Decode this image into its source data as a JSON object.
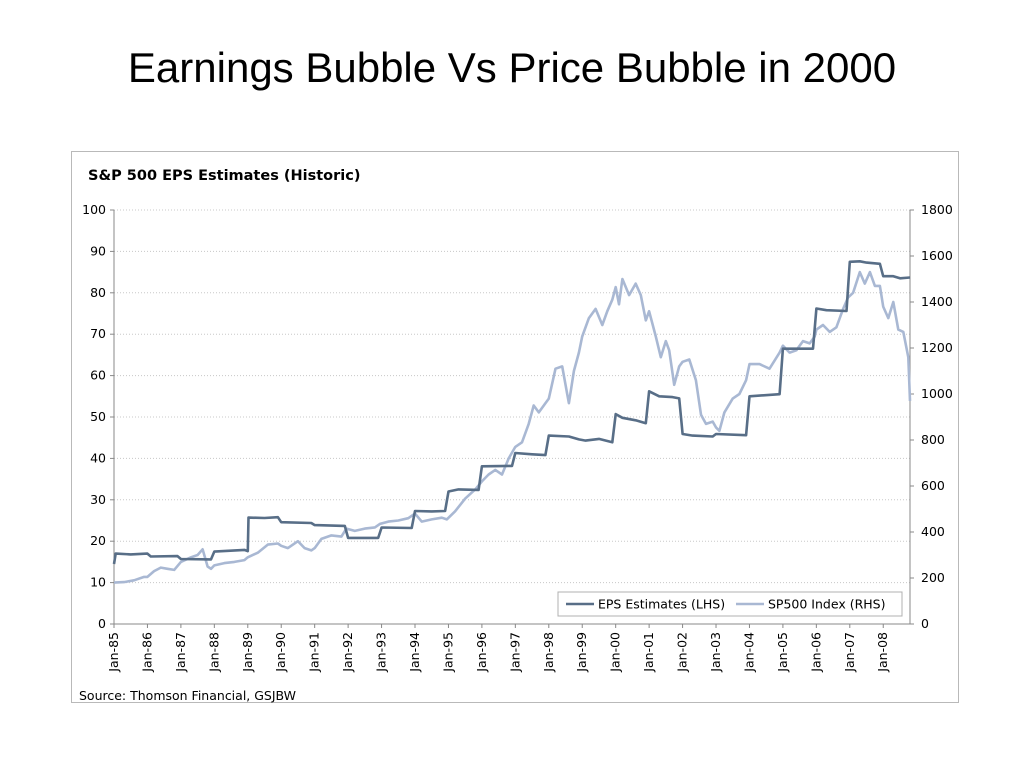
{
  "slide": {
    "title": "Earnings Bubble Vs Price Bubble in 2000"
  },
  "source": "Source: Thomson Financial, GSJBW",
  "chart_data": {
    "type": "line",
    "title": "S&P 500 EPS Estimates (Historic)",
    "grid": "horizontal dotted",
    "legend_position": "bottom-right",
    "x_ticks": [
      "Jan-85",
      "Jan-86",
      "Jan-87",
      "Jan-88",
      "Jan-89",
      "Jan-90",
      "Jan-91",
      "Jan-92",
      "Jan-93",
      "Jan-94",
      "Jan-95",
      "Jan-96",
      "Jan-97",
      "Jan-98",
      "Jan-99",
      "Jan-00",
      "Jan-01",
      "Jan-02",
      "Jan-03",
      "Jan-04",
      "Jan-05",
      "Jan-06",
      "Jan-07",
      "Jan-08"
    ],
    "x_range": [
      1985.0,
      2008.8
    ],
    "y_left": {
      "ylim": [
        0,
        100
      ],
      "ticks": [
        0,
        10,
        20,
        30,
        40,
        50,
        60,
        70,
        80,
        90,
        100
      ]
    },
    "y_right": {
      "ylim": [
        0,
        1800
      ],
      "ticks": [
        0,
        200,
        400,
        600,
        800,
        1000,
        1200,
        1400,
        1600,
        1800
      ]
    },
    "series": [
      {
        "name": "EPS Estimates (LHS)",
        "axis": "left",
        "color": "#586e87",
        "points": [
          [
            1985.0,
            14.5
          ],
          [
            1985.05,
            17.0
          ],
          [
            1985.5,
            16.8
          ],
          [
            1986.0,
            17.0
          ],
          [
            1986.1,
            16.3
          ],
          [
            1986.9,
            16.4
          ],
          [
            1987.0,
            15.7
          ],
          [
            1987.9,
            15.6
          ],
          [
            1988.0,
            17.5
          ],
          [
            1988.9,
            17.9
          ],
          [
            1989.0,
            17.6
          ],
          [
            1989.02,
            25.7
          ],
          [
            1989.5,
            25.6
          ],
          [
            1989.9,
            25.8
          ],
          [
            1990.0,
            24.6
          ],
          [
            1990.9,
            24.4
          ],
          [
            1991.0,
            23.9
          ],
          [
            1991.9,
            23.7
          ],
          [
            1992.0,
            20.8
          ],
          [
            1992.9,
            20.8
          ],
          [
            1993.0,
            23.3
          ],
          [
            1993.9,
            23.2
          ],
          [
            1994.0,
            27.3
          ],
          [
            1994.5,
            27.2
          ],
          [
            1994.9,
            27.3
          ],
          [
            1995.0,
            32.0
          ],
          [
            1995.3,
            32.5
          ],
          [
            1995.9,
            32.4
          ],
          [
            1996.0,
            38.1
          ],
          [
            1996.9,
            38.2
          ],
          [
            1997.0,
            41.3
          ],
          [
            1997.5,
            41.0
          ],
          [
            1997.9,
            40.8
          ],
          [
            1998.0,
            45.5
          ],
          [
            1998.6,
            45.3
          ],
          [
            1998.9,
            44.6
          ],
          [
            1999.1,
            44.3
          ],
          [
            1999.5,
            44.7
          ],
          [
            1999.9,
            43.9
          ],
          [
            2000.0,
            50.7
          ],
          [
            2000.2,
            49.8
          ],
          [
            2000.6,
            49.2
          ],
          [
            2000.9,
            48.5
          ],
          [
            2001.0,
            56.2
          ],
          [
            2001.3,
            55.0
          ],
          [
            2001.7,
            54.8
          ],
          [
            2001.9,
            54.5
          ],
          [
            2002.0,
            45.9
          ],
          [
            2002.3,
            45.5
          ],
          [
            2002.9,
            45.3
          ],
          [
            2003.0,
            45.9
          ],
          [
            2003.9,
            45.6
          ],
          [
            2004.0,
            55.0
          ],
          [
            2004.9,
            55.5
          ],
          [
            2005.0,
            66.5
          ],
          [
            2005.9,
            66.5
          ],
          [
            2006.0,
            76.2
          ],
          [
            2006.3,
            75.8
          ],
          [
            2006.9,
            75.6
          ],
          [
            2007.0,
            87.5
          ],
          [
            2007.3,
            87.6
          ],
          [
            2007.5,
            87.3
          ],
          [
            2007.9,
            87.0
          ],
          [
            2008.0,
            84.0
          ],
          [
            2008.3,
            84.0
          ],
          [
            2008.5,
            83.5
          ],
          [
            2008.8,
            83.7
          ]
        ]
      },
      {
        "name": "SP500 Index (RHS)",
        "axis": "right",
        "color": "#a9b8d3",
        "points": [
          [
            1985.0,
            180
          ],
          [
            1985.3,
            182
          ],
          [
            1985.6,
            190
          ],
          [
            1985.9,
            205
          ],
          [
            1986.0,
            205
          ],
          [
            1986.2,
            230
          ],
          [
            1986.4,
            245
          ],
          [
            1986.6,
            240
          ],
          [
            1986.8,
            235
          ],
          [
            1987.0,
            270
          ],
          [
            1987.3,
            290
          ],
          [
            1987.5,
            300
          ],
          [
            1987.65,
            325
          ],
          [
            1987.8,
            250
          ],
          [
            1987.9,
            240
          ],
          [
            1988.0,
            255
          ],
          [
            1988.3,
            265
          ],
          [
            1988.6,
            270
          ],
          [
            1988.9,
            278
          ],
          [
            1989.0,
            290
          ],
          [
            1989.3,
            310
          ],
          [
            1989.6,
            345
          ],
          [
            1989.9,
            350
          ],
          [
            1990.0,
            340
          ],
          [
            1990.2,
            330
          ],
          [
            1990.5,
            360
          ],
          [
            1990.7,
            330
          ],
          [
            1990.9,
            320
          ],
          [
            1991.0,
            330
          ],
          [
            1991.2,
            370
          ],
          [
            1991.5,
            385
          ],
          [
            1991.8,
            380
          ],
          [
            1991.95,
            415
          ],
          [
            1992.2,
            405
          ],
          [
            1992.5,
            415
          ],
          [
            1992.8,
            420
          ],
          [
            1992.95,
            435
          ],
          [
            1993.2,
            445
          ],
          [
            1993.5,
            450
          ],
          [
            1993.8,
            460
          ],
          [
            1994.0,
            480
          ],
          [
            1994.2,
            445
          ],
          [
            1994.5,
            455
          ],
          [
            1994.8,
            462
          ],
          [
            1994.95,
            455
          ],
          [
            1995.2,
            490
          ],
          [
            1995.5,
            545
          ],
          [
            1995.8,
            585
          ],
          [
            1996.0,
            620
          ],
          [
            1996.2,
            650
          ],
          [
            1996.4,
            670
          ],
          [
            1996.6,
            650
          ],
          [
            1996.8,
            720
          ],
          [
            1997.0,
            770
          ],
          [
            1997.2,
            790
          ],
          [
            1997.4,
            870
          ],
          [
            1997.55,
            950
          ],
          [
            1997.7,
            920
          ],
          [
            1997.9,
            960
          ],
          [
            1998.0,
            980
          ],
          [
            1998.2,
            1110
          ],
          [
            1998.4,
            1120
          ],
          [
            1998.55,
            1000
          ],
          [
            1998.6,
            960
          ],
          [
            1998.75,
            1100
          ],
          [
            1998.9,
            1180
          ],
          [
            1999.0,
            1250
          ],
          [
            1999.2,
            1330
          ],
          [
            1999.4,
            1370
          ],
          [
            1999.6,
            1300
          ],
          [
            1999.75,
            1360
          ],
          [
            1999.9,
            1410
          ],
          [
            2000.0,
            1465
          ],
          [
            2000.1,
            1390
          ],
          [
            2000.2,
            1500
          ],
          [
            2000.4,
            1430
          ],
          [
            2000.6,
            1480
          ],
          [
            2000.75,
            1430
          ],
          [
            2000.9,
            1320
          ],
          [
            2001.0,
            1360
          ],
          [
            2001.2,
            1250
          ],
          [
            2001.35,
            1160
          ],
          [
            2001.5,
            1230
          ],
          [
            2001.6,
            1190
          ],
          [
            2001.75,
            1040
          ],
          [
            2001.9,
            1120
          ],
          [
            2002.0,
            1140
          ],
          [
            2002.2,
            1150
          ],
          [
            2002.4,
            1060
          ],
          [
            2002.55,
            910
          ],
          [
            2002.7,
            870
          ],
          [
            2002.9,
            880
          ],
          [
            2003.0,
            855
          ],
          [
            2003.1,
            840
          ],
          [
            2003.25,
            920
          ],
          [
            2003.5,
            980
          ],
          [
            2003.7,
            1000
          ],
          [
            2003.9,
            1060
          ],
          [
            2004.0,
            1130
          ],
          [
            2004.3,
            1130
          ],
          [
            2004.6,
            1110
          ],
          [
            2004.9,
            1180
          ],
          [
            2005.0,
            1210
          ],
          [
            2005.2,
            1180
          ],
          [
            2005.4,
            1190
          ],
          [
            2005.6,
            1230
          ],
          [
            2005.8,
            1220
          ],
          [
            2005.95,
            1250
          ],
          [
            2006.0,
            1280
          ],
          [
            2006.2,
            1300
          ],
          [
            2006.4,
            1270
          ],
          [
            2006.6,
            1290
          ],
          [
            2006.8,
            1370
          ],
          [
            2006.95,
            1420
          ],
          [
            2007.1,
            1440
          ],
          [
            2007.3,
            1530
          ],
          [
            2007.45,
            1480
          ],
          [
            2007.6,
            1530
          ],
          [
            2007.75,
            1470
          ],
          [
            2007.9,
            1470
          ],
          [
            2008.0,
            1380
          ],
          [
            2008.15,
            1330
          ],
          [
            2008.3,
            1400
          ],
          [
            2008.45,
            1280
          ],
          [
            2008.6,
            1270
          ],
          [
            2008.75,
            1160
          ],
          [
            2008.8,
            970
          ]
        ]
      }
    ]
  }
}
